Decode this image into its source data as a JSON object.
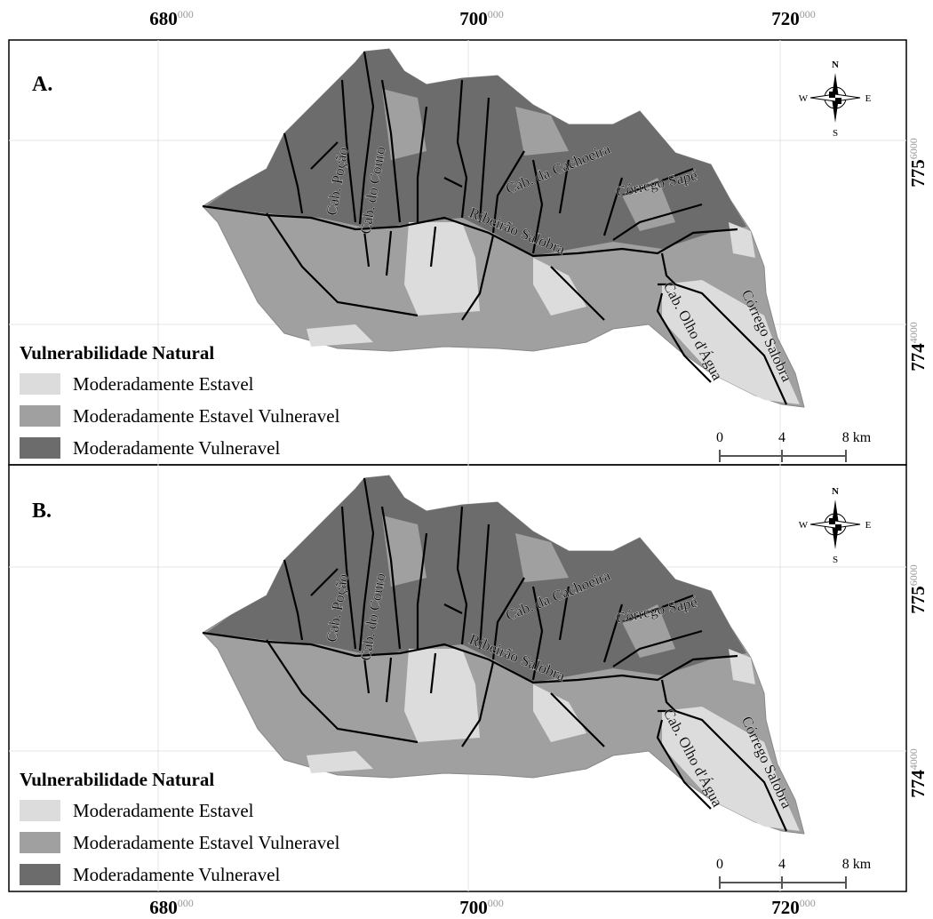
{
  "top_axis": [
    {
      "main": "680",
      "sup": "000"
    },
    {
      "main": "700",
      "sup": "000"
    },
    {
      "main": "720",
      "sup": "000"
    }
  ],
  "bottom_axis": [
    {
      "main": "680",
      "sup": "000"
    },
    {
      "main": "700",
      "sup": "000"
    },
    {
      "main": "720",
      "sup": "000"
    }
  ],
  "right_axis": [
    {
      "main": "775",
      "sup": "6000"
    },
    {
      "main": "774",
      "sup": "4000"
    },
    {
      "main": "775",
      "sup": "6000"
    },
    {
      "main": "774",
      "sup": "4000"
    }
  ],
  "panels": [
    {
      "label": "A.",
      "streams": [
        "Cab. Poção",
        "Cab. do Couro",
        "Ribeirão Salobra",
        "Cab. da Cachoeira",
        "Córrego Sapé",
        "Cab. Olho d'Água",
        "Córrego Salobra"
      ],
      "compass": {
        "n": "N",
        "s": "S",
        "w": "W",
        "e": "E"
      },
      "legend": {
        "title": "Vulnerabilidade Natural",
        "items": [
          "Moderadamente Estavel",
          "Moderadamente Estavel Vulneravel",
          "Moderadamente Vulneravel"
        ]
      },
      "scale": [
        "0",
        "4",
        "8 km"
      ]
    },
    {
      "label": "B.",
      "streams": [
        "Cab. Poção",
        "Cab. do Couro",
        "Ribeirão Salobra",
        "Cab. da Cachoeira",
        "Córrego Sapé",
        "Cab. Olho d'Água",
        "Córrego Salobra"
      ],
      "compass": {
        "n": "N",
        "s": "S",
        "w": "W",
        "e": "E"
      },
      "legend": {
        "title": "Vulnerabilidade Natural",
        "items": [
          "Moderadamente Estavel",
          "Moderadamente Estavel Vulneravel",
          "Moderadamente Vulneravel"
        ]
      },
      "scale": [
        "0",
        "4",
        "8 km"
      ]
    }
  ]
}
